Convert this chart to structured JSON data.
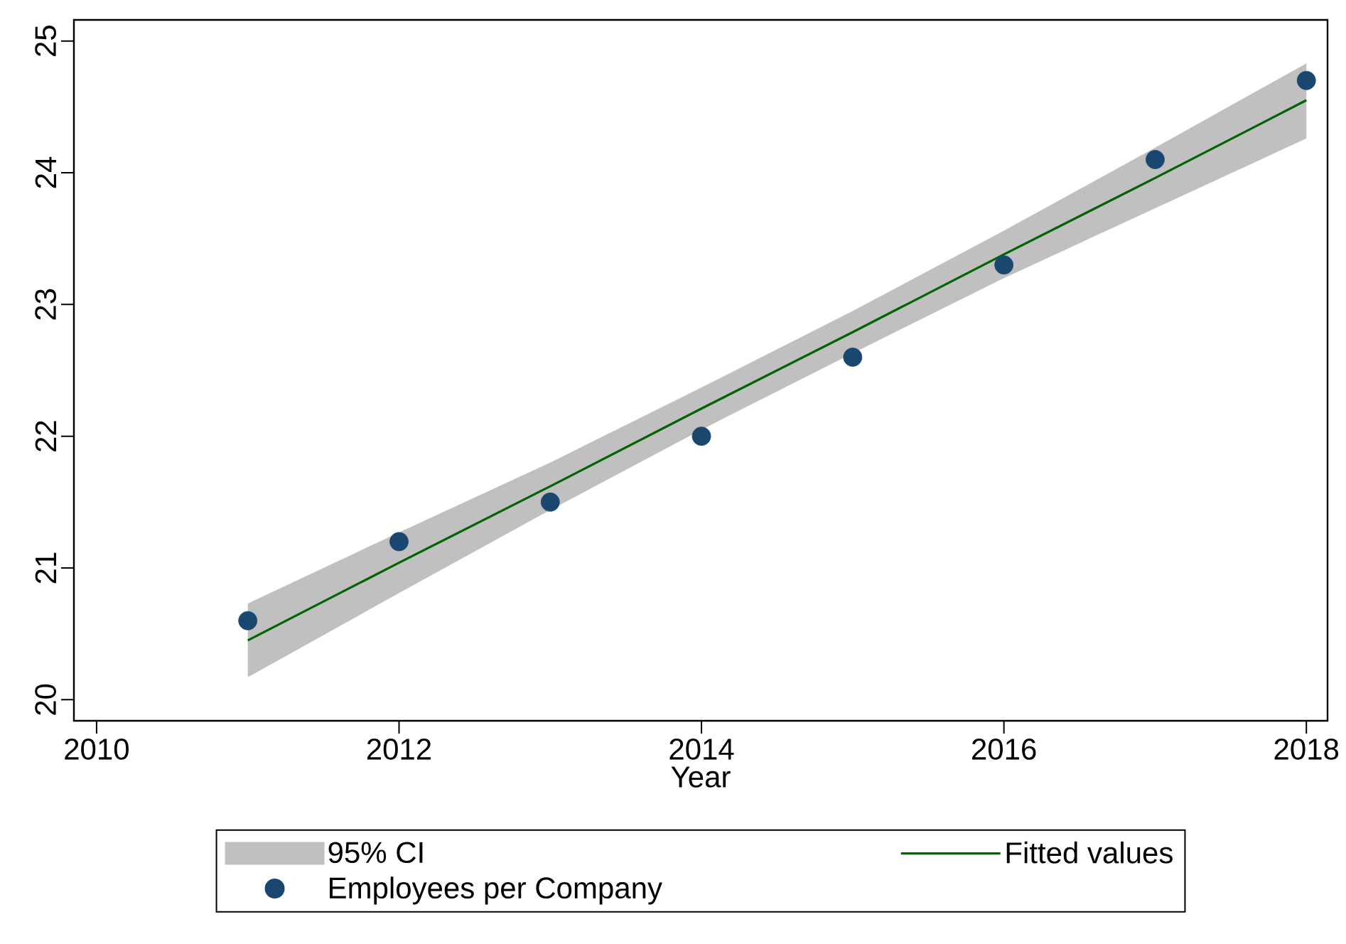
{
  "chart_data": {
    "type": "line",
    "xlabel": "Year",
    "x": [
      2011,
      2012,
      2013,
      2014,
      2015,
      2016,
      2017,
      2018
    ],
    "series": [
      {
        "name": "Fitted values",
        "type": "line",
        "color": "#006400",
        "values": [
          20.45,
          21.04,
          21.62,
          22.21,
          22.79,
          23.38,
          23.96,
          24.55
        ],
        "lower": [
          20.17,
          20.81,
          21.44,
          22.05,
          22.63,
          23.2,
          23.73,
          24.26
        ],
        "upper": [
          20.73,
          21.27,
          21.8,
          22.37,
          22.95,
          23.56,
          24.19,
          24.83
        ]
      },
      {
        "name": "Employees per Company",
        "type": "scatter",
        "color": "#1a476f",
        "marker": "circle",
        "values": [
          20.6,
          21.2,
          21.5,
          22.0,
          22.6,
          23.3,
          24.1,
          24.7
        ]
      }
    ],
    "annotations": [
      "95% CI"
    ],
    "xlim": [
      2009.85,
      2018.14
    ],
    "ylim": [
      19.84,
      25.16
    ],
    "xticks": [
      2010,
      2012,
      2014,
      2016,
      2018
    ],
    "yticks": [
      20,
      21,
      22,
      23,
      24,
      25
    ],
    "legend": "bottom"
  }
}
